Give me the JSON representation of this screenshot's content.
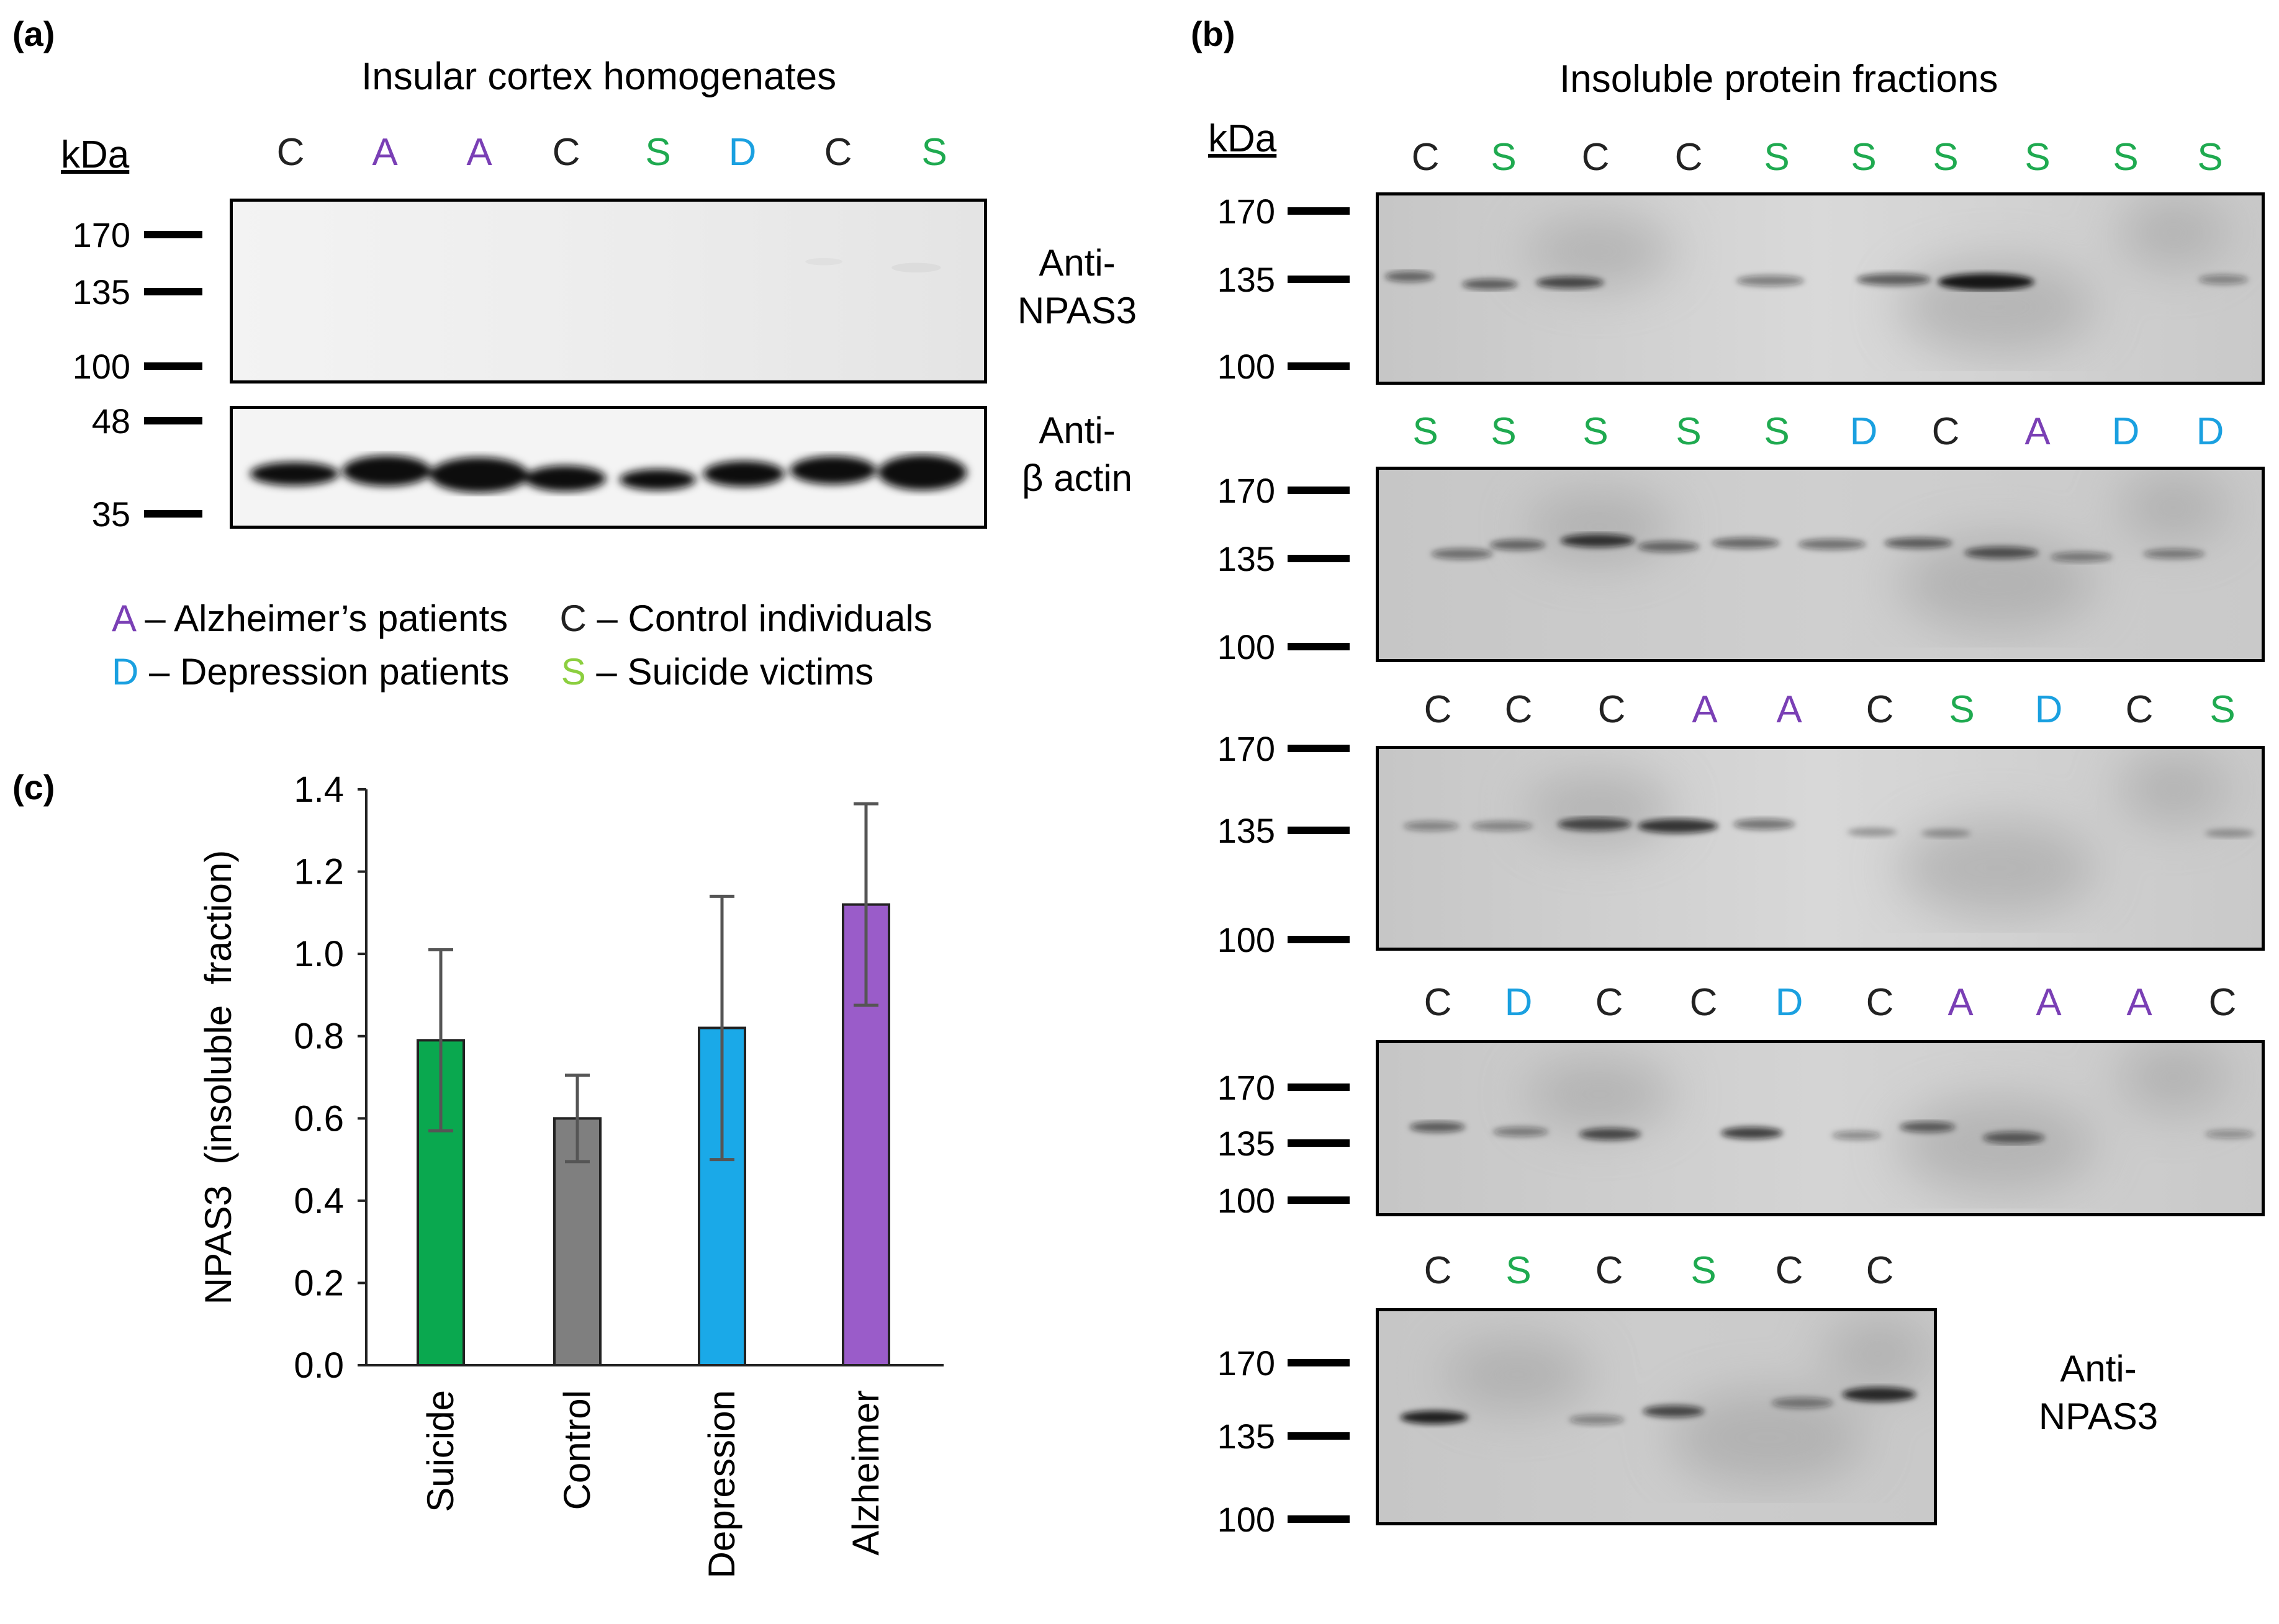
{
  "panel_a": {
    "label": "(a)",
    "title": "Insular cortex homogenates",
    "kda": "kDa",
    "lanes": [
      "C",
      "A",
      "A",
      "C",
      "S",
      "D",
      "C",
      "S"
    ],
    "npas3_markers": [
      "170",
      "135",
      "100"
    ],
    "actin_markers": [
      "48",
      "35"
    ],
    "npas3_antibody_line1": "Anti-",
    "npas3_antibody_line2": "NPAS3",
    "actin_antibody_line1": "Anti-",
    "actin_antibody_line2": "β actin"
  },
  "legend": {
    "a_letter": "A",
    "a_text": " – Alzheimer’s patients",
    "c_letter": "C",
    "c_text": " – Control individuals",
    "d_letter": "D",
    "d_text": " – Depression patients",
    "s_letter": "S",
    "s_text": " – Suicide victims"
  },
  "panel_b": {
    "label": "(b)",
    "title": "Insoluble  protein  fractions",
    "kda": "kDa",
    "markers": [
      "170",
      "135",
      "100"
    ],
    "blot1_lanes": [
      "C",
      "S",
      "C",
      "C",
      "S",
      "S",
      "S",
      "S",
      "S",
      "S"
    ],
    "blot2_lanes": [
      "S",
      "S",
      "S",
      "S",
      "S",
      "D",
      "C",
      "A",
      "D",
      "D"
    ],
    "blot3_lanes": [
      "C",
      "C",
      "C",
      "A",
      "A",
      "C",
      "S",
      "D",
      "C",
      "S"
    ],
    "blot4_lanes": [
      "C",
      "D",
      "C",
      "C",
      "D",
      "C",
      "A",
      "A",
      "A",
      "C"
    ],
    "blot5_lanes": [
      "C",
      "S",
      "C",
      "S",
      "C",
      "C"
    ],
    "antibody_line1": "Anti-",
    "antibody_line2": "NPAS3"
  },
  "panel_c": {
    "label": "(c)"
  },
  "colors": {
    "C": "#222222",
    "A": "#7a3fb5",
    "S": "#1faa50",
    "D": "#1aa0e0",
    "legend_S": "#8ccf3f",
    "bar_suicide": "#0aa84f",
    "bar_control": "#7f7f7f",
    "bar_depression": "#1aa9e8",
    "bar_alzheimer": "#9a5cc9"
  },
  "chart_data": {
    "type": "bar",
    "categories": [
      "Suicide",
      "Control",
      "Depression",
      "Alzheimer"
    ],
    "values": [
      0.79,
      0.6,
      0.82,
      1.12
    ],
    "errors": [
      0.22,
      0.105,
      0.32,
      0.245
    ],
    "ylabel": "NPAS3  (insoluble  fraction)",
    "ylim": [
      0,
      1.4
    ],
    "yticks": [
      "0.0",
      "0.2",
      "0.4",
      "0.6",
      "0.8",
      "1.0",
      "1.2",
      "1.4"
    ],
    "grid": false
  }
}
